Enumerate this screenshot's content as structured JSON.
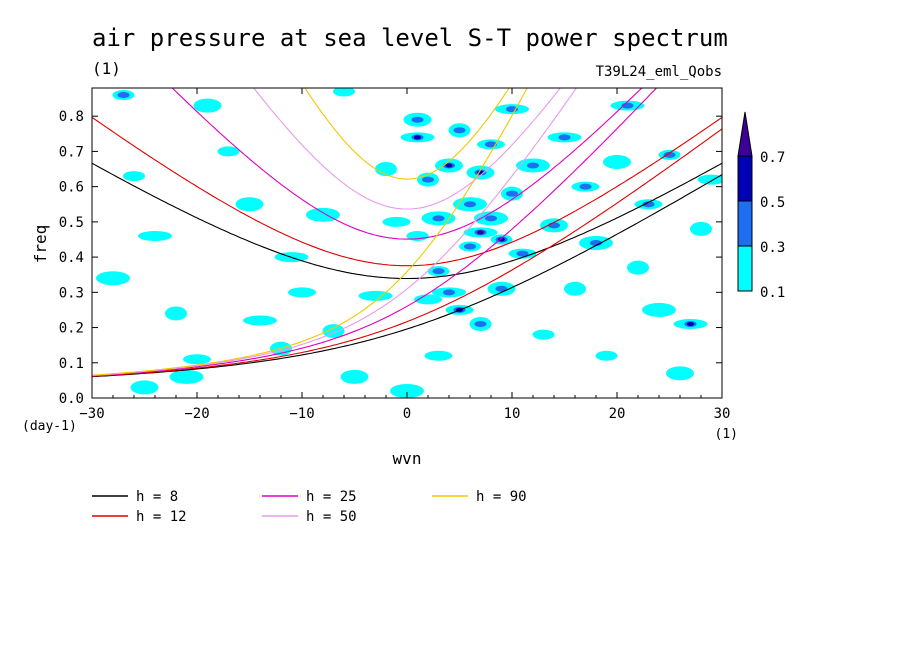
{
  "chart_data": {
    "type": "contour",
    "title": "air pressure at sea level S-T power spectrum",
    "title_unit": "(1)",
    "subtitle_right": "T39L24_eml_Qobs",
    "xlabel": "wvn",
    "x_unit": "(1)",
    "ylabel": "freq",
    "y_unit": "(day-1)",
    "xlim": [
      -30,
      30
    ],
    "ylim": [
      0,
      0.88
    ],
    "xticks": [
      -30,
      -20,
      -10,
      0,
      10,
      20,
      30
    ],
    "yticks": [
      0.0,
      0.1,
      0.2,
      0.3,
      0.4,
      0.5,
      0.6,
      0.7,
      0.8
    ],
    "colorbar": {
      "levels": [
        0.1,
        0.3,
        0.5,
        0.7
      ],
      "tick_labels": [
        "0.1",
        "0.3",
        "0.5",
        "0.7"
      ],
      "colors": [
        "#00ffff",
        "#1e6ef0",
        "#0000b4",
        "#3c0096"
      ]
    },
    "dispersion_curves": [
      {
        "name": "h =  8",
        "h": 8,
        "color": "#000000"
      },
      {
        "name": "h = 12",
        "h": 12,
        "color": "#e00000"
      },
      {
        "name": "h = 25",
        "h": 25,
        "color": "#e000c0"
      },
      {
        "name": "h = 50",
        "h": 50,
        "color": "#e89be8"
      },
      {
        "name": "h = 90",
        "h": 90,
        "color": "#f0c800"
      }
    ],
    "power_blobs": [
      [
        -27,
        0.86,
        0.3
      ],
      [
        -25,
        0.03,
        0.1
      ],
      [
        -24,
        0.46,
        0.1
      ],
      [
        -22,
        0.24,
        0.1
      ],
      [
        -20,
        0.11,
        0.1
      ],
      [
        -21,
        0.06,
        0.1
      ],
      [
        -17,
        0.7,
        0.1
      ],
      [
        -15,
        0.55,
        0.1
      ],
      [
        -14,
        0.22,
        0.1
      ],
      [
        -12,
        0.14,
        0.1
      ],
      [
        -10,
        0.3,
        0.1
      ],
      [
        -8,
        0.52,
        0.1
      ],
      [
        -6,
        0.87,
        0.1
      ],
      [
        -5,
        0.06,
        0.1
      ],
      [
        -3,
        0.29,
        0.1
      ],
      [
        -2,
        0.65,
        0.1
      ],
      [
        -1,
        0.5,
        0.1
      ],
      [
        0,
        0.02,
        0.1
      ],
      [
        1,
        0.46,
        0.1
      ],
      [
        1,
        0.79,
        0.3
      ],
      [
        1,
        0.74,
        0.5
      ],
      [
        2,
        0.62,
        0.3
      ],
      [
        2,
        0.28,
        0.1
      ],
      [
        3,
        0.51,
        0.3
      ],
      [
        3,
        0.36,
        0.3
      ],
      [
        4,
        0.66,
        0.5
      ],
      [
        4,
        0.3,
        0.3
      ],
      [
        5,
        0.76,
        0.3
      ],
      [
        5,
        0.25,
        0.5
      ],
      [
        6,
        0.55,
        0.3
      ],
      [
        6,
        0.43,
        0.3
      ],
      [
        7,
        0.64,
        0.5
      ],
      [
        7,
        0.47,
        0.7
      ],
      [
        7,
        0.21,
        0.3
      ],
      [
        8,
        0.72,
        0.3
      ],
      [
        8,
        0.51,
        0.3
      ],
      [
        9,
        0.45,
        0.5
      ],
      [
        9,
        0.31,
        0.3
      ],
      [
        10,
        0.82,
        0.3
      ],
      [
        10,
        0.58,
        0.3
      ],
      [
        11,
        0.41,
        0.3
      ],
      [
        12,
        0.66,
        0.3
      ],
      [
        13,
        0.18,
        0.1
      ],
      [
        14,
        0.49,
        0.3
      ],
      [
        15,
        0.74,
        0.3
      ],
      [
        16,
        0.31,
        0.1
      ],
      [
        17,
        0.6,
        0.3
      ],
      [
        18,
        0.44,
        0.3
      ],
      [
        19,
        0.12,
        0.1
      ],
      [
        20,
        0.67,
        0.1
      ],
      [
        21,
        0.83,
        0.3
      ],
      [
        22,
        0.37,
        0.1
      ],
      [
        23,
        0.55,
        0.3
      ],
      [
        24,
        0.25,
        0.1
      ],
      [
        25,
        0.69,
        0.3
      ],
      [
        26,
        0.07,
        0.1
      ],
      [
        27,
        0.21,
        0.5
      ],
      [
        28,
        0.48,
        0.1
      ],
      [
        29,
        0.62,
        0.1
      ],
      [
        -28,
        0.34,
        0.1
      ],
      [
        -26,
        0.63,
        0.1
      ],
      [
        -19,
        0.83,
        0.1
      ],
      [
        -11,
        0.4,
        0.1
      ],
      [
        -7,
        0.19,
        0.1
      ],
      [
        3,
        0.12,
        0.1
      ]
    ]
  },
  "legend": {
    "items": [
      "h =  8",
      "h = 12",
      "h = 25",
      "h = 50",
      "h = 90"
    ]
  }
}
